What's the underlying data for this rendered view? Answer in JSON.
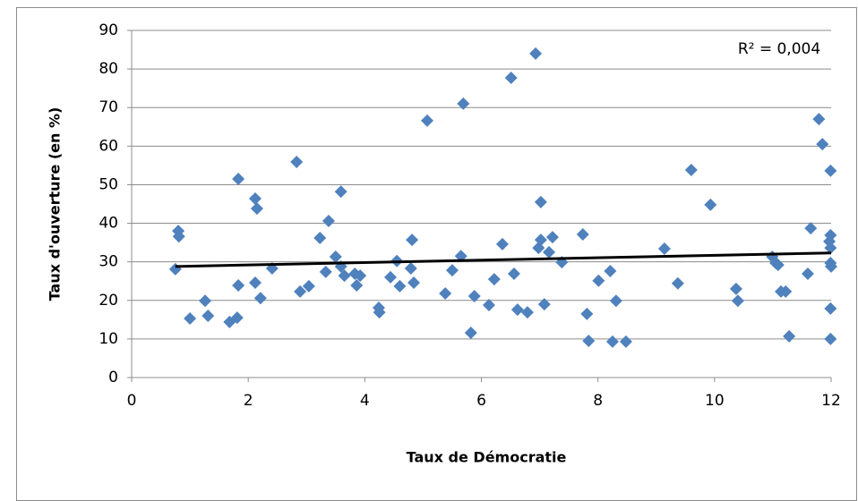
{
  "chart_data": {
    "type": "scatter",
    "x_label": "Taux de Démocratie",
    "y_label": "Taux d'ouverture (en %)",
    "annotation": "R² = 0,004",
    "xlim": [
      0,
      12
    ],
    "xticks": [
      0,
      2,
      4,
      6,
      8,
      10,
      12
    ],
    "ylim": [
      0,
      90
    ],
    "yticks": [
      0,
      10,
      20,
      30,
      40,
      50,
      60,
      70,
      80,
      90
    ],
    "grid": true,
    "color": "#4f81bd",
    "x": [
      0.75,
      0.8,
      0.81,
      1.0,
      1.26,
      1.31,
      1.68,
      1.81,
      1.83,
      1.83,
      2.12,
      2.15,
      2.12,
      2.21,
      2.41,
      2.83,
      2.89,
      3.04,
      3.23,
      3.33,
      3.38,
      3.5,
      3.59,
      3.59,
      3.65,
      3.83,
      3.86,
      3.92,
      4.24,
      4.25,
      4.44,
      4.55,
      4.6,
      4.79,
      4.81,
      4.84,
      5.07,
      5.38,
      5.5,
      5.65,
      5.69,
      5.82,
      5.88,
      6.13,
      6.22,
      6.36,
      6.51,
      6.56,
      6.62,
      6.79,
      6.93,
      6.98,
      7.02,
      7.02,
      7.08,
      7.16,
      7.22,
      7.38,
      7.74,
      7.81,
      7.84,
      8.01,
      8.21,
      8.25,
      8.31,
      8.48,
      9.14,
      9.37,
      9.6,
      9.93,
      10.37,
      10.4,
      10.99,
      11.05,
      11.09,
      11.14,
      11.22,
      11.28,
      11.6,
      11.65,
      11.79,
      11.85,
      11.99,
      11.99,
      11.97,
      11.99,
      11.99,
      12.0,
      11.99,
      11.99
    ],
    "values": [
      28.1,
      38.0,
      36.6,
      15.3,
      19.9,
      16.0,
      14.4,
      15.5,
      51.5,
      23.9,
      46.4,
      43.8,
      24.6,
      20.6,
      28.3,
      55.9,
      22.3,
      23.7,
      36.2,
      27.4,
      40.6,
      31.3,
      48.2,
      28.8,
      26.4,
      26.9,
      23.9,
      26.4,
      18.1,
      16.9,
      26.0,
      30.2,
      23.7,
      28.3,
      35.7,
      24.6,
      66.6,
      21.8,
      27.8,
      31.5,
      71.0,
      11.6,
      21.1,
      18.8,
      25.5,
      34.6,
      77.7,
      26.9,
      17.6,
      16.9,
      84.0,
      33.6,
      45.5,
      35.7,
      19.0,
      32.5,
      36.4,
      29.9,
      37.1,
      16.5,
      9.5,
      25.1,
      27.6,
      9.3,
      19.9,
      9.3,
      33.4,
      24.4,
      53.8,
      44.8,
      23.0,
      19.9,
      31.3,
      29.7,
      29.2,
      22.3,
      22.3,
      10.7,
      26.9,
      38.7,
      67.0,
      60.5,
      53.6,
      36.9,
      35.3,
      33.6,
      29.7,
      28.8,
      17.9,
      10.0
    ],
    "trendline": {
      "color": "#000000",
      "x": [
        0.75,
        12
      ],
      "values": [
        28.8,
        32.3
      ]
    }
  }
}
